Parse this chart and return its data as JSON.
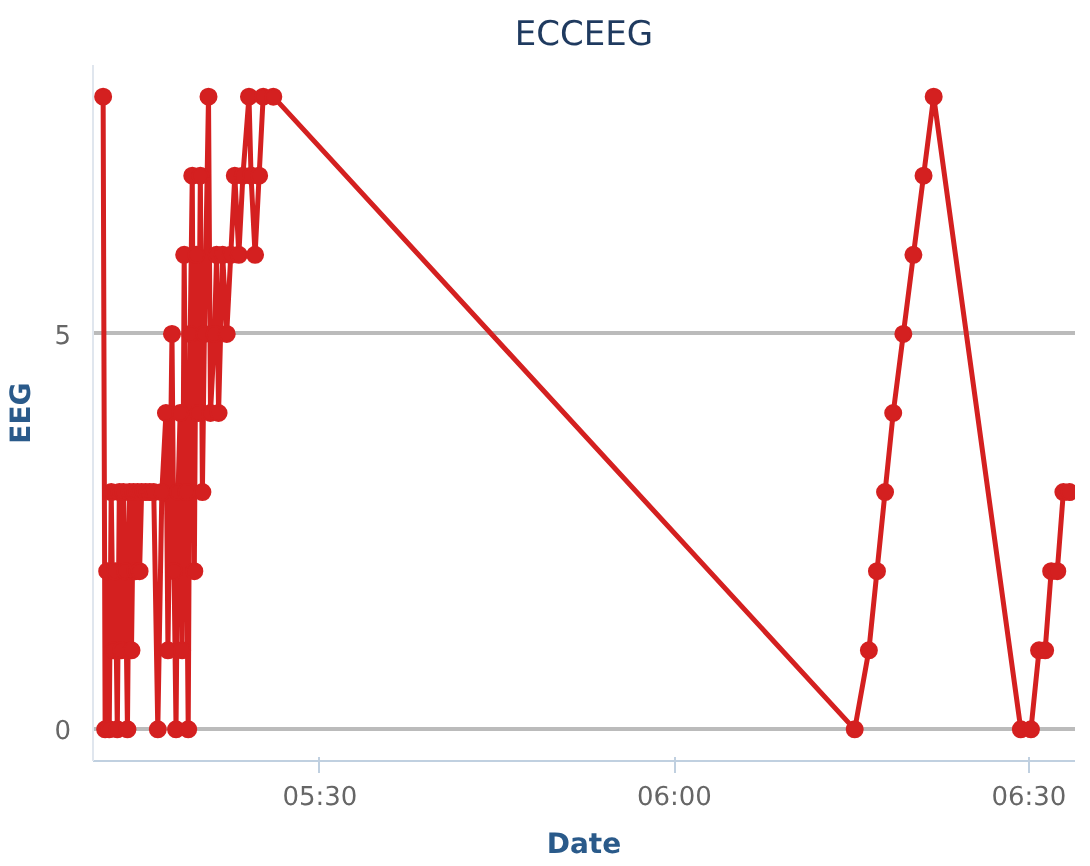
{
  "chart_data": {
    "type": "line",
    "title": "ECCEEG",
    "xlabel": "Date",
    "ylabel": "EEG",
    "x": [
      5.1943,
      5.1971,
      5.2,
      5.2029,
      5.2057,
      5.2086,
      5.2114,
      5.2143,
      5.2171,
      5.22,
      5.2229,
      5.2257,
      5.2286,
      5.2314,
      5.2343,
      5.2371,
      5.24,
      5.2429,
      5.2457,
      5.2486,
      5.2543,
      5.26,
      5.2657,
      5.2714,
      5.2771,
      5.2829,
      5.2857,
      5.2914,
      5.2943,
      5.2971,
      5.3,
      5.3029,
      5.3057,
      5.3086,
      5.3114,
      5.3143,
      5.3171,
      5.32,
      5.3229,
      5.3257,
      5.3286,
      5.3314,
      5.3343,
      5.3371,
      5.3429,
      5.3457,
      5.3514,
      5.3543,
      5.3571,
      5.3629,
      5.3686,
      5.3743,
      5.38,
      5.3857,
      5.3914,
      5.4,
      5.4029,
      5.4086,
      5.4143,
      5.42,
      5.4343,
      6.2543,
      6.2743,
      6.2857,
      6.2971,
      6.3086,
      6.3229,
      6.3371,
      6.3514,
      6.3657,
      6.4886,
      6.5029,
      6.5143,
      6.5229,
      6.5314,
      6.54,
      6.5486,
      6.5571
    ],
    "series": [
      {
        "color": "#d42020",
        "values": [
          8,
          0,
          2,
          0,
          3,
          1,
          2,
          0,
          3,
          1,
          3,
          2,
          0,
          3,
          1,
          3,
          2,
          3,
          2,
          3,
          3,
          3,
          3,
          0,
          3,
          4,
          1,
          5,
          2,
          0,
          3,
          4,
          1,
          6,
          3,
          0,
          5,
          7,
          2,
          6,
          4,
          7,
          3,
          5,
          8,
          4,
          5,
          6,
          4,
          6,
          5,
          6,
          7,
          6,
          7,
          8,
          7,
          6,
          7,
          8,
          8,
          0,
          1,
          2,
          3,
          4,
          5,
          6,
          7,
          8,
          0,
          0,
          1,
          1,
          2,
          2,
          3,
          3
        ]
      }
    ],
    "xlim": [
      5.18,
      6.565
    ],
    "xticks": [
      {
        "value": 5.5,
        "label": "05:30"
      },
      {
        "value": 6.0,
        "label": "06:00"
      },
      {
        "value": 6.5,
        "label": "06:30"
      }
    ],
    "ylim": [
      -0.4,
      8.4
    ],
    "yticks": [
      0,
      5
    ],
    "grid": "y",
    "marker": "circle",
    "line_style": "solid"
  }
}
